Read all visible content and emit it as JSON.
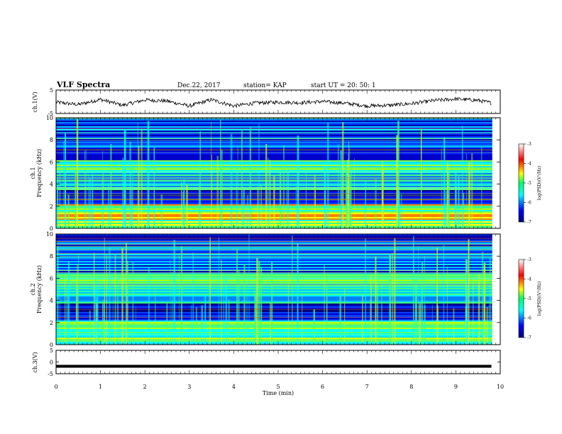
{
  "header": {
    "title": "VLF Spectra",
    "date": "Dec.22, 2017",
    "station": "station= KAP",
    "start_ut": "start  UT =   20: 50: 1"
  },
  "colors": {
    "spec_low": "#00007f",
    "spec_mid": "#00ffff",
    "spec_high": "#ff0000",
    "line_trace": "#000000"
  },
  "chart_data": [
    {
      "type": "line",
      "panel": "ch1-waveform",
      "ylabel": "ch.1(V)",
      "ylim": [
        -5,
        5
      ],
      "y_ticks": [
        "5",
        "-5"
      ],
      "xlim": [
        0,
        10
      ],
      "x": [
        0,
        0.5,
        1.0,
        1.5,
        2.0,
        2.5,
        3.0,
        3.5,
        4.0,
        4.5,
        5.0,
        5.5,
        6.0,
        6.5,
        7.0,
        7.5,
        8.0,
        8.5,
        9.0,
        9.5,
        9.8
      ],
      "values": [
        -0.2,
        -1.2,
        1.0,
        -1.5,
        0.8,
        0.3,
        -1.8,
        0.9,
        -1.8,
        -0.5,
        -0.2,
        -0.4,
        0.1,
        -0.6,
        -1.8,
        -1.5,
        -0.8,
        0.5,
        1.2,
        0.6,
        -0.5
      ]
    },
    {
      "type": "heatmap",
      "panel": "ch1-spectrogram",
      "ylabel": "ch.1\nFrequency (kHz)",
      "ylabel_lines": [
        "ch.1",
        "Frequency (kHz)"
      ],
      "xlim": [
        0,
        10
      ],
      "ylim": [
        0,
        10
      ],
      "y_ticks": [
        "0",
        "2",
        "4",
        "6",
        "8",
        "10"
      ],
      "colorbar": {
        "range": [
          -7,
          -3
        ],
        "ticks": [
          "-3",
          "-4",
          "-5",
          "-6",
          "-7"
        ],
        "label": "log(PSD)(V²/Hz)"
      },
      "bands_khz": [
        {
          "from": 0,
          "to": 2.3,
          "level": "high"
        },
        {
          "from": 2.3,
          "to": 3.5,
          "level": "low"
        },
        {
          "from": 3.5,
          "to": 5.2,
          "level": "mid"
        },
        {
          "from": 5.2,
          "to": 6.2,
          "level": "mid-high"
        },
        {
          "from": 6.2,
          "to": 7.4,
          "level": "low"
        },
        {
          "from": 7.4,
          "to": 10,
          "level": "low-mid"
        }
      ]
    },
    {
      "type": "heatmap",
      "panel": "ch2-spectrogram",
      "ylabel": "ch.2\nFrequency (kHz)",
      "ylabel_lines": [
        "ch.2",
        "Frequency (kHz)"
      ],
      "xlim": [
        0,
        10
      ],
      "ylim": [
        0,
        10
      ],
      "y_ticks": [
        "0",
        "2",
        "4",
        "6",
        "8",
        "10"
      ],
      "colorbar": {
        "range": [
          -7,
          -3
        ],
        "ticks": [
          "-3",
          "-4",
          "-5",
          "-6",
          "-7"
        ],
        "label": "log(PSD)(V²/Hz)"
      },
      "bands_khz": [
        {
          "from": 0,
          "to": 2.2,
          "level": "mid-high"
        },
        {
          "from": 2.2,
          "to": 3.8,
          "level": "low"
        },
        {
          "from": 3.8,
          "to": 5.0,
          "level": "mid"
        },
        {
          "from": 5.0,
          "to": 6.5,
          "level": "mid-high"
        },
        {
          "from": 6.5,
          "to": 10,
          "level": "low-mid"
        }
      ]
    },
    {
      "type": "line",
      "panel": "ch3-waveform",
      "ylabel": "ch.3(V)",
      "ylim": [
        -5,
        5
      ],
      "y_ticks": [
        "5",
        "0",
        "-5"
      ],
      "xlim": [
        0,
        10
      ],
      "x": [
        0,
        9.8
      ],
      "values": [
        -1.8,
        -1.8
      ],
      "xlabel": "Time  (min)",
      "x_ticks": [
        "0",
        "1",
        "2",
        "3",
        "4",
        "5",
        "6",
        "7",
        "8",
        "9",
        "10"
      ]
    }
  ]
}
